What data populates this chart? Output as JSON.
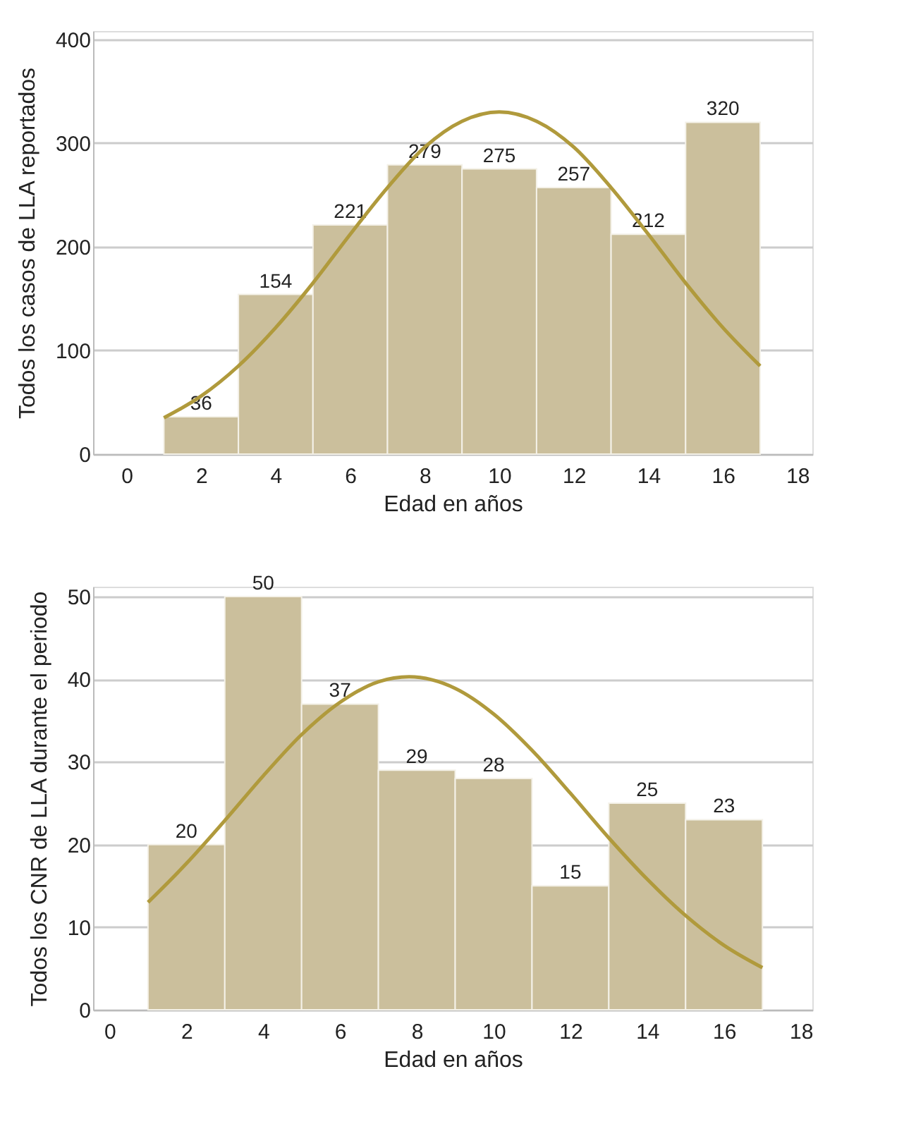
{
  "chart_data": [
    {
      "type": "histogram",
      "xlabel": "Edad en años",
      "ylabel": "Todos los casos de LLA reportados",
      "bins": [
        1,
        3,
        5,
        7,
        9,
        11,
        13,
        15,
        17
      ],
      "xlim": [
        -0.9,
        18.4
      ],
      "xticks": [
        0,
        2,
        4,
        6,
        8,
        10,
        12,
        14,
        16,
        18
      ],
      "ylim": [
        0,
        408
      ],
      "yticks": [
        0,
        100,
        200,
        300,
        400
      ],
      "grid": "y",
      "series": [
        {
          "color": "#cbbf9c",
          "values": [
            36,
            154,
            221,
            279,
            275,
            257,
            212,
            320
          ],
          "value_labels": [
            "36",
            "154",
            "221",
            "279",
            "275",
            "257",
            "212",
            "320"
          ]
        },
        {
          "type": "line",
          "color": "#b09a3c",
          "x": [
            1,
            2,
            3,
            4,
            5,
            6,
            7,
            8,
            9,
            10,
            11,
            12,
            13,
            14,
            15,
            16,
            17
          ],
          "values": [
            35,
            56,
            85,
            122,
            165,
            212,
            257,
            296,
            321,
            330,
            321,
            296,
            257,
            212,
            165,
            122,
            85
          ]
        }
      ]
    },
    {
      "type": "histogram",
      "xlabel": "Edad en años",
      "ylabel": "Todos los CNR de LLA durante el periodo",
      "bins": [
        1,
        3,
        5,
        7,
        9,
        11,
        13,
        15,
        17
      ],
      "xlim": [
        -0.43,
        18.3
      ],
      "xticks": [
        0,
        2,
        4,
        6,
        8,
        10,
        12,
        14,
        16,
        18
      ],
      "ylim": [
        0,
        51.2
      ],
      "yticks": [
        0,
        10,
        20,
        30,
        40,
        50
      ],
      "grid": "y",
      "series": [
        {
          "color": "#cbbf9c",
          "values": [
            20,
            50,
            37,
            29,
            28,
            15,
            25,
            23
          ],
          "value_labels": [
            "20",
            "50",
            "37",
            "29",
            "28",
            "15",
            "25",
            "23"
          ]
        },
        {
          "type": "line",
          "color": "#b09a3c",
          "x": [
            1,
            2,
            3,
            4,
            5,
            6,
            7,
            7.8,
            9,
            10,
            11,
            12,
            13,
            14,
            15,
            16,
            17
          ],
          "values": [
            13.0,
            17.7,
            22.9,
            28.3,
            33.3,
            37.2,
            39.7,
            40.3,
            38.9,
            35.8,
            31.4,
            26.2,
            20.8,
            15.8,
            11.4,
            7.8,
            5.1
          ]
        }
      ]
    }
  ]
}
